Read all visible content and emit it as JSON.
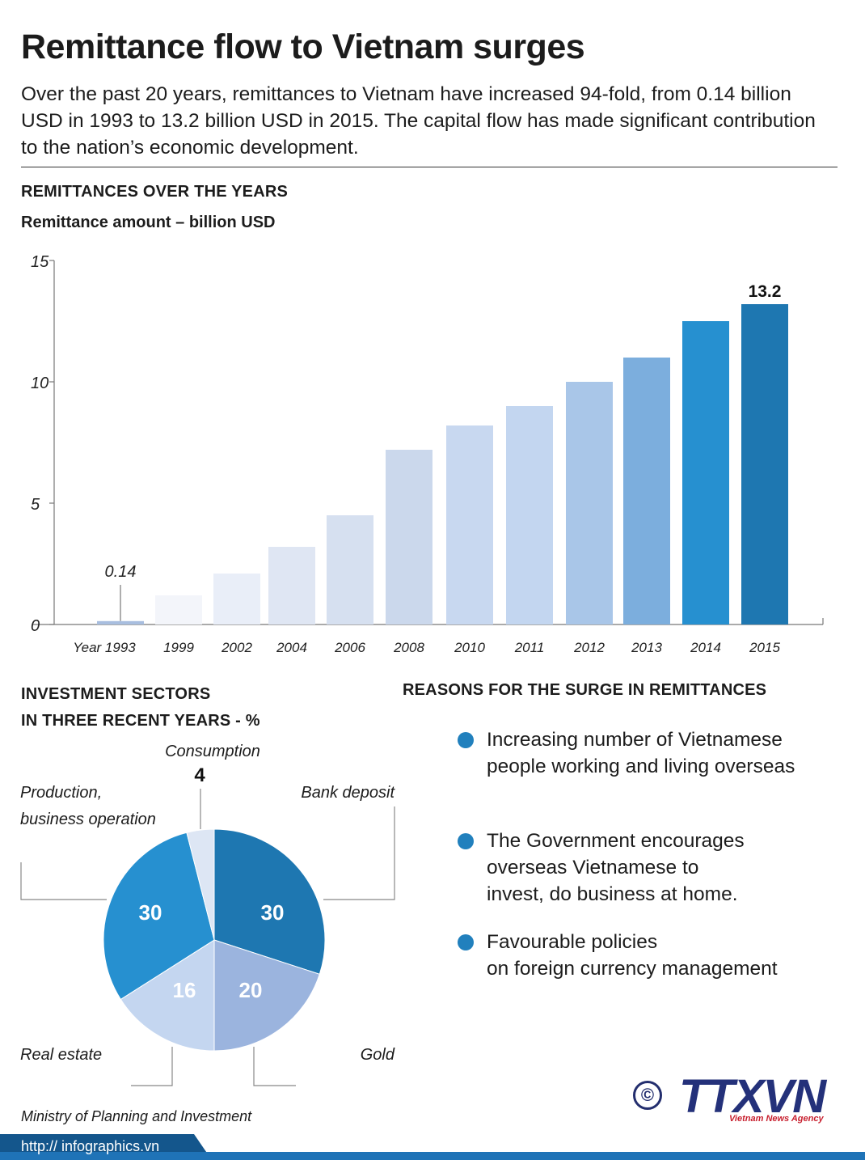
{
  "title": "Remittance flow to Vietnam surges",
  "intro": "Over the past 20 years, remittances to Vietnam have increased 94-fold, from 0.14 billion USD in 1993 to 13.2 billion USD in 2015. The capital flow has made significant contribution to the nation’s economic development.",
  "bar_section": {
    "heading": "REMITTANCES OVER THE YEARS",
    "unit_label": "Remittance amount – billion USD"
  },
  "investment_section": {
    "heading_line1": "INVESTMENT SECTORS",
    "heading_line2": "IN THREE RECENT YEARS - %"
  },
  "reasons_section": {
    "heading": "REASONS FOR THE SURGE IN REMITTANCES",
    "items": [
      "Increasing number of Vietnamese\npeople working and living overseas",
      "The Government encourages\n overseas Vietnamese to\ninvest, do business at home.",
      "Favourable policies\non foreign currency management"
    ]
  },
  "source": "Ministry of Planning and Investment",
  "footer": {
    "url": "http:// infographics.vn"
  },
  "logo": {
    "text": "TTXVN",
    "subtitle": "Vietnam News Agency",
    "copyright": "©"
  },
  "colors": {
    "footer_bar": "#1f73b7",
    "bars": [
      "#a8bedf",
      "#f3f5fa",
      "#e9eef8",
      "#dfe6f3",
      "#d6e0f0",
      "#cbd8ec",
      "#c8d8f0",
      "#c3d6f0",
      "#a9c6e8",
      "#7caedd",
      "#2690d0",
      "#1e77b1"
    ],
    "pie": {
      "bank_deposit": "#1e77b1",
      "gold": "#9bb4de",
      "real_estate": "#c4d6f0",
      "production": "#2690d0",
      "consumption": "#dde6f4"
    }
  },
  "chart_data": [
    {
      "type": "bar",
      "title": "REMITTANCES OVER THE YEARS",
      "ylabel": "Remittance amount – billion USD",
      "xlabel": "",
      "categories": [
        "Year 1993",
        "1999",
        "2002",
        "2004",
        "2006",
        "2008",
        "2010",
        "2011",
        "2012",
        "2013",
        "2014",
        "2015"
      ],
      "values": [
        0.14,
        1.2,
        2.1,
        3.2,
        4.5,
        7.2,
        8.2,
        9.0,
        10.0,
        11.0,
        12.5,
        13.2
      ],
      "data_labels": {
        "Year 1993": "0.14",
        "2015": "13.2"
      },
      "ylim": [
        0,
        15
      ],
      "yticks": [
        0,
        5,
        10,
        15
      ],
      "grid": false
    },
    {
      "type": "pie",
      "title": "INVESTMENT SECTORS IN THREE RECENT YEARS - %",
      "slices": [
        {
          "label": "Bank deposit",
          "value": 30
        },
        {
          "label": "Gold",
          "value": 20
        },
        {
          "label": "Real estate",
          "value": 16
        },
        {
          "label": "Production, business operation",
          "value": 30
        },
        {
          "label": "Consumption",
          "value": 4
        }
      ]
    }
  ]
}
